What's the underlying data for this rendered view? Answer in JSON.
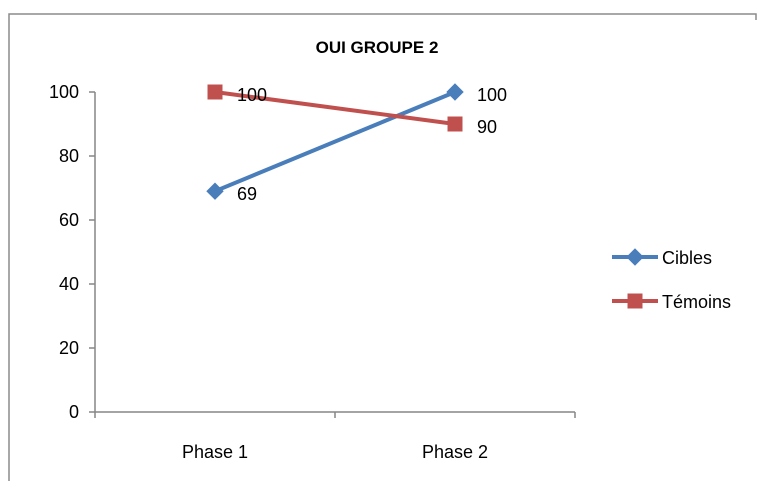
{
  "chart_data": {
    "type": "line",
    "title": "OUI GROUPE 2",
    "categories": [
      "Phase 1",
      "Phase 2"
    ],
    "ylim": [
      0,
      100
    ],
    "yticks": [
      0,
      20,
      40,
      60,
      80,
      100
    ],
    "grid": false,
    "legend_position": "right",
    "series": [
      {
        "name": "Cibles",
        "values": [
          69,
          100
        ],
        "data_labels": [
          "69",
          "100"
        ],
        "color": "#4a7ebb",
        "marker": "diamond"
      },
      {
        "name": "Témoins",
        "values": [
          100,
          90
        ],
        "data_labels": [
          "100",
          "90"
        ],
        "color": "#c0504d",
        "marker": "square"
      }
    ]
  }
}
